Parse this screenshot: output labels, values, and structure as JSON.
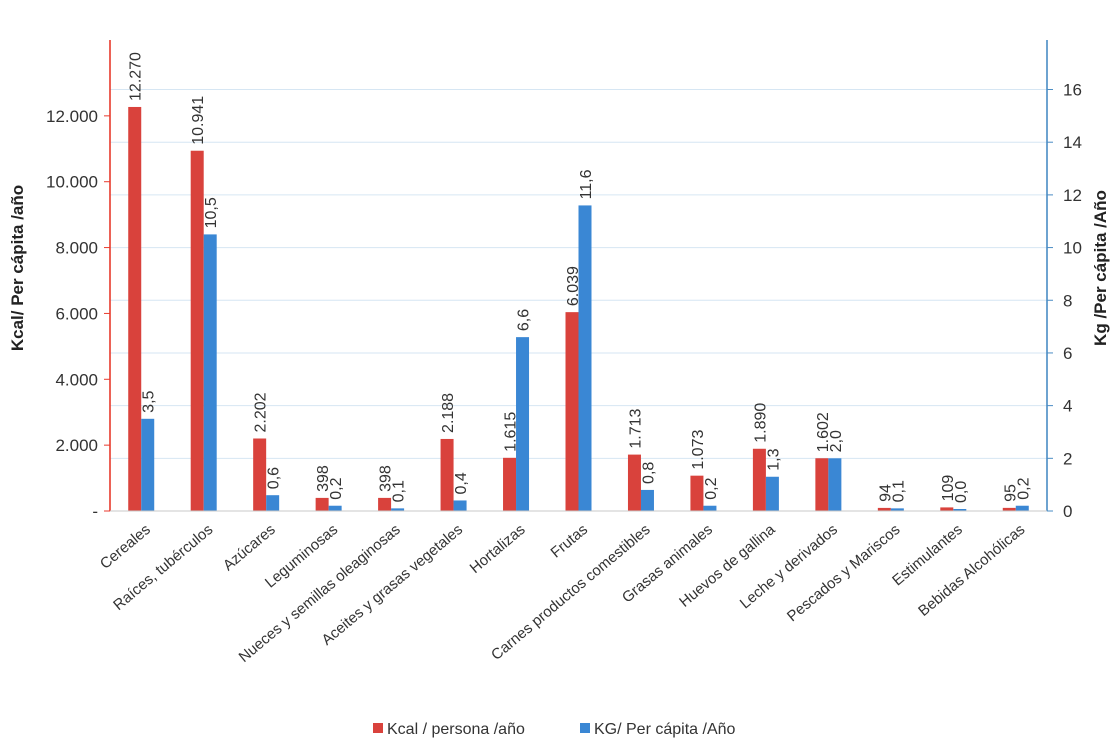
{
  "chart_data": {
    "type": "bar",
    "categories": [
      "Cereales",
      "Raíces, tubérculos",
      "Azúcares",
      "Leguminosas",
      "Nueces y semillas oleaginosas",
      "Aceites y grasas vegetales",
      "Hortalizas",
      "Frutas",
      "Carnes productos comestibles",
      "Grasas animales",
      "Huevos de gallina",
      "Leche y derivados",
      "Pescados y Mariscos",
      "Estimulantes",
      "Bebidas Alcohólicas"
    ],
    "series": [
      {
        "name": "Kcal / persona /año",
        "axis": "left",
        "color": "#d9423c",
        "values": [
          12270,
          10941,
          2202,
          398,
          398,
          2188,
          1615,
          6039,
          1713,
          1073,
          1890,
          1602,
          94,
          109,
          95
        ],
        "labels": [
          "12.270",
          "10.941",
          "2.202",
          "398",
          "398",
          "2.188",
          "1.615",
          "6.039",
          "1.713",
          "1.073",
          "1.890",
          "1.602",
          "94",
          "109",
          "95"
        ]
      },
      {
        "name": "KG/ Per cápita /Año",
        "axis": "right",
        "color": "#3a87d4",
        "values": [
          3.5,
          10.5,
          0.6,
          0.2,
          0.1,
          0.4,
          6.6,
          11.6,
          0.8,
          0.2,
          1.3,
          2.0,
          0.1,
          0.0,
          0.2
        ],
        "labels": [
          "3,5",
          "10,5",
          "0,6",
          "0,2",
          "0,1",
          "0,4",
          "6,6",
          "11,6",
          "0,8",
          "0,2",
          "1,3",
          "2,0",
          "0,1",
          "0,0",
          "0,2"
        ]
      }
    ],
    "ylabel_left": "Kcal/ Per cápita /año",
    "ylabel_right": "Kg /Per cápita /Año",
    "ylim_left": [
      0,
      14000
    ],
    "ylim_right": [
      0,
      17.5
    ],
    "yticks_left": [
      0,
      2000,
      4000,
      6000,
      8000,
      10000,
      12000
    ],
    "yticks_left_labels": [
      "-",
      "2.000",
      "4.000",
      "6.000",
      "8.000",
      "10.000",
      "12.000"
    ],
    "yticks_right": [
      0,
      2,
      4,
      6,
      8,
      10,
      12,
      14,
      16
    ],
    "yticks_right_labels": [
      "0",
      "2",
      "4",
      "6",
      "8",
      "10",
      "12",
      "14",
      "16"
    ],
    "left_axis_color": "#e83a2c",
    "right_axis_color": "#4a8cc4",
    "grid_color": "#d6e6f3",
    "grid": true,
    "legend_position": "bottom"
  }
}
